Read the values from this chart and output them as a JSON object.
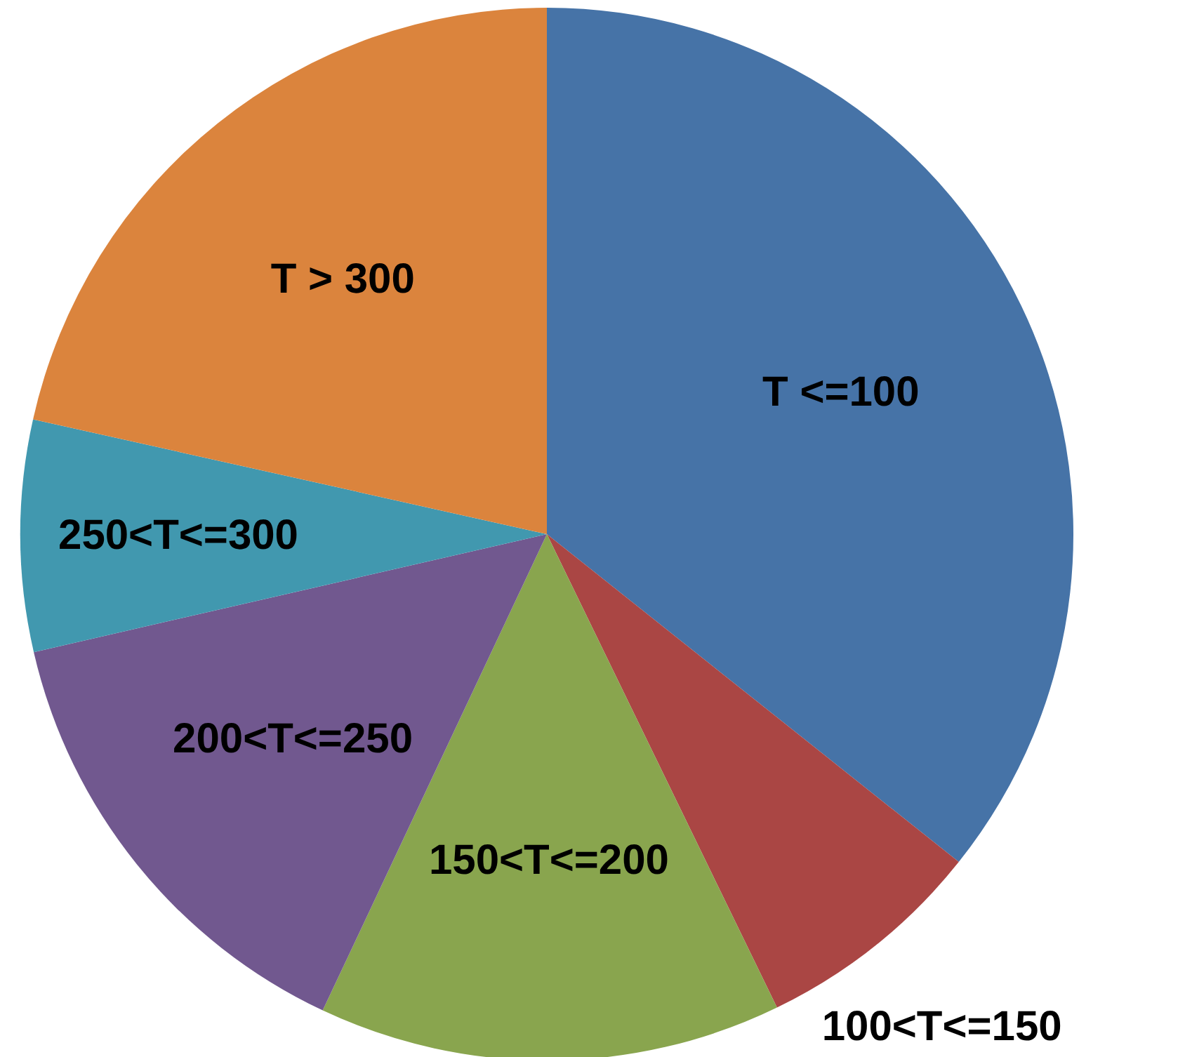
{
  "chart_data": {
    "type": "pie",
    "categories": [
      "T <=100",
      "100<T<=150",
      "150<T<=200",
      "200<T<=250",
      "250<T<=300",
      "T > 300"
    ],
    "values": [
      35.7,
      7.1,
      14.2,
      14.4,
      7.1,
      21.5
    ],
    "colors": [
      "#4673a7",
      "#aa4644",
      "#89a54e",
      "#71588f",
      "#4198af",
      "#db843d"
    ]
  }
}
